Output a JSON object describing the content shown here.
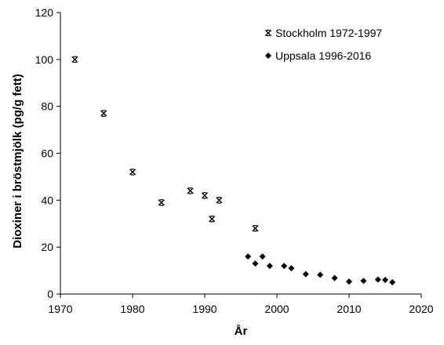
{
  "chart_data": {
    "type": "scatter",
    "xlabel": "År",
    "ylabel": "Dioxiner i bröstmjölk (pg/g fett)",
    "xlim": [
      1970,
      2020
    ],
    "ylim": [
      0,
      120
    ],
    "xticks": [
      1970,
      1980,
      1990,
      2000,
      2010,
      2020
    ],
    "yticks": [
      0,
      20,
      40,
      60,
      80,
      100,
      120
    ],
    "grid": false,
    "legend_position": "top-right",
    "series": [
      {
        "name": "Stockholm 1972-1997",
        "marker": "star",
        "color": "#000000",
        "points": [
          {
            "x": 1972,
            "y": 100
          },
          {
            "x": 1976,
            "y": 77
          },
          {
            "x": 1980,
            "y": 52
          },
          {
            "x": 1984,
            "y": 39
          },
          {
            "x": 1988,
            "y": 44
          },
          {
            "x": 1990,
            "y": 42
          },
          {
            "x": 1991,
            "y": 32
          },
          {
            "x": 1992,
            "y": 40
          },
          {
            "x": 1997,
            "y": 28
          }
        ]
      },
      {
        "name": "Uppsala 1996-2016",
        "marker": "diamond",
        "color": "#000000",
        "points": [
          {
            "x": 1996,
            "y": 16
          },
          {
            "x": 1997,
            "y": 13
          },
          {
            "x": 1998,
            "y": 16
          },
          {
            "x": 1999,
            "y": 12
          },
          {
            "x": 2001,
            "y": 12
          },
          {
            "x": 2002,
            "y": 11
          },
          {
            "x": 2004,
            "y": 8.5
          },
          {
            "x": 2006,
            "y": 8.2
          },
          {
            "x": 2008,
            "y": 6.8
          },
          {
            "x": 2010,
            "y": 5.3
          },
          {
            "x": 2012,
            "y": 5.6
          },
          {
            "x": 2014,
            "y": 6.2
          },
          {
            "x": 2015,
            "y": 6.0
          },
          {
            "x": 2016,
            "y": 5.0
          }
        ]
      }
    ]
  }
}
